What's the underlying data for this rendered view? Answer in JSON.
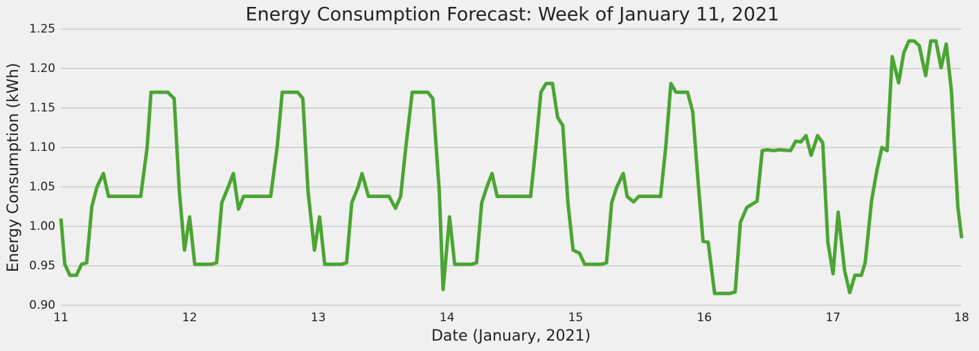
{
  "chart_data": {
    "type": "line",
    "title": "Energy Consumption Forecast: Week of January 11, 2021",
    "x_label": "Date (January, 2021)",
    "y_label": "Energy Consumption (kWh)",
    "color": "#4aa532",
    "grid": "y",
    "xlim": [
      11,
      18
    ],
    "xticks": [
      11,
      12,
      13,
      14,
      15,
      16,
      17,
      18
    ],
    "ylim": [
      0.9,
      1.25
    ],
    "yticks": [
      {
        "value": 0.9,
        "label": "0.90"
      },
      {
        "value": 0.95,
        "label": "0.95"
      },
      {
        "value": 1.0,
        "label": "1.00"
      },
      {
        "value": 1.05,
        "label": "1.05"
      },
      {
        "value": 1.1,
        "label": "1.10"
      },
      {
        "value": 1.15,
        "label": "1.15"
      },
      {
        "value": 1.2,
        "label": "1.20"
      },
      {
        "value": 1.25,
        "label": "1.25"
      }
    ],
    "x": [
      11.0,
      11.03,
      11.07,
      11.12,
      11.16,
      11.2,
      11.24,
      11.28,
      11.33,
      11.37,
      11.62,
      11.67,
      11.7,
      11.83,
      11.88,
      11.92,
      11.96,
      12.0,
      12.04,
      12.17,
      12.21,
      12.25,
      12.3,
      12.34,
      12.38,
      12.42,
      12.63,
      12.68,
      12.72,
      12.84,
      12.88,
      12.92,
      12.97,
      13.01,
      13.05,
      13.18,
      13.22,
      13.26,
      13.31,
      13.34,
      13.39,
      13.55,
      13.6,
      13.64,
      13.68,
      13.73,
      13.85,
      13.89,
      13.94,
      13.97,
      14.02,
      14.06,
      14.19,
      14.23,
      14.27,
      14.31,
      14.35,
      14.39,
      14.65,
      14.69,
      14.73,
      14.77,
      14.82,
      14.86,
      14.9,
      14.94,
      14.98,
      15.03,
      15.07,
      15.2,
      15.24,
      15.28,
      15.32,
      15.37,
      15.4,
      15.45,
      15.49,
      15.66,
      15.7,
      15.74,
      15.78,
      15.87,
      15.91,
      15.95,
      15.99,
      16.03,
      16.08,
      16.2,
      16.24,
      16.28,
      16.33,
      16.37,
      16.41,
      16.45,
      16.49,
      16.54,
      16.58,
      16.67,
      16.71,
      16.75,
      16.79,
      16.83,
      16.88,
      16.92,
      16.96,
      17.0,
      17.04,
      17.09,
      17.13,
      17.17,
      17.22,
      17.25,
      17.3,
      17.34,
      17.38,
      17.42,
      17.46,
      17.51,
      17.55,
      17.59,
      17.63,
      17.67,
      17.72,
      17.76,
      17.8,
      17.84,
      17.88,
      17.92,
      17.97,
      18.0
    ],
    "values": [
      1.01,
      0.952,
      0.938,
      0.938,
      0.952,
      0.954,
      1.025,
      1.05,
      1.067,
      1.038,
      1.038,
      1.1,
      1.17,
      1.17,
      1.162,
      1.045,
      0.97,
      1.012,
      0.952,
      0.952,
      0.954,
      1.03,
      1.05,
      1.067,
      1.022,
      1.038,
      1.038,
      1.1,
      1.17,
      1.17,
      1.162,
      1.045,
      0.97,
      1.012,
      0.952,
      0.952,
      0.954,
      1.03,
      1.05,
      1.067,
      1.038,
      1.038,
      1.023,
      1.038,
      1.1,
      1.17,
      1.17,
      1.162,
      1.045,
      0.92,
      1.012,
      0.952,
      0.952,
      0.954,
      1.03,
      1.05,
      1.067,
      1.038,
      1.038,
      1.1,
      1.17,
      1.181,
      1.181,
      1.138,
      1.128,
      1.03,
      0.97,
      0.966,
      0.952,
      0.952,
      0.954,
      1.03,
      1.05,
      1.067,
      1.038,
      1.031,
      1.038,
      1.038,
      1.1,
      1.181,
      1.17,
      1.17,
      1.145,
      1.06,
      0.981,
      0.98,
      0.915,
      0.915,
      0.917,
      1.005,
      1.024,
      1.028,
      1.032,
      1.096,
      1.097,
      1.096,
      1.097,
      1.096,
      1.108,
      1.107,
      1.115,
      1.09,
      1.115,
      1.106,
      0.98,
      0.94,
      1.018,
      0.944,
      0.916,
      0.938,
      0.938,
      0.954,
      1.033,
      1.07,
      1.1,
      1.096,
      1.215,
      1.182,
      1.22,
      1.235,
      1.235,
      1.229,
      1.191,
      1.235,
      1.235,
      1.201,
      1.231,
      1.172,
      1.025,
      0.985
    ]
  }
}
